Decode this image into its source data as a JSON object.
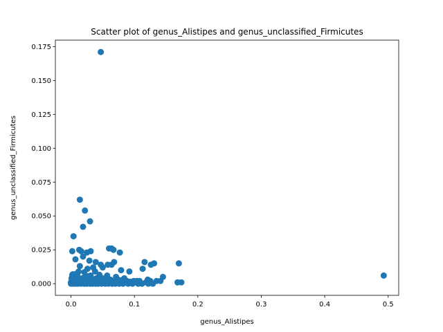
{
  "chart_data": {
    "type": "scatter",
    "title": "Scatter plot of genus_Alistipes and genus_unclassified_Firmicutes",
    "xlabel": "genus_Alistipes",
    "ylabel": "genus_unclassified_Firmicutes",
    "xlim": [
      -0.0246,
      0.5166
    ],
    "ylim": [
      -0.0086,
      0.1798
    ],
    "xticks": [
      0.0,
      0.1,
      0.2,
      0.3,
      0.4,
      0.5
    ],
    "xtick_labels": [
      "0.0",
      "0.1",
      "0.2",
      "0.3",
      "0.4",
      "0.5"
    ],
    "yticks": [
      0.0,
      0.025,
      0.05,
      0.075,
      0.1,
      0.125,
      0.15,
      0.175
    ],
    "ytick_labels": [
      "0.000",
      "0.025",
      "0.050",
      "0.075",
      "0.100",
      "0.125",
      "0.150",
      "0.175"
    ],
    "grid": false,
    "color": "#1f77b4",
    "points": [
      [
        0.047,
        0.171
      ],
      [
        0.014,
        0.062
      ],
      [
        0.022,
        0.054
      ],
      [
        0.03,
        0.046
      ],
      [
        0.019,
        0.042
      ],
      [
        0.004,
        0.035
      ],
      [
        0.06,
        0.026
      ],
      [
        0.064,
        0.026
      ],
      [
        0.067,
        0.025
      ],
      [
        0.013,
        0.025
      ],
      [
        0.016,
        0.024
      ],
      [
        0.002,
        0.024
      ],
      [
        0.031,
        0.024
      ],
      [
        0.025,
        0.023
      ],
      [
        0.077,
        0.023
      ],
      [
        0.019,
        0.02
      ],
      [
        0.007,
        0.018
      ],
      [
        0.029,
        0.017
      ],
      [
        0.039,
        0.016
      ],
      [
        0.068,
        0.016
      ],
      [
        0.116,
        0.016
      ],
      [
        0.131,
        0.015
      ],
      [
        0.17,
        0.015
      ],
      [
        0.047,
        0.014
      ],
      [
        0.058,
        0.014
      ],
      [
        0.064,
        0.014
      ],
      [
        0.126,
        0.014
      ],
      [
        0.014,
        0.013
      ],
      [
        0.035,
        0.012
      ],
      [
        0.05,
        0.012
      ],
      [
        0.026,
        0.011
      ],
      [
        0.113,
        0.011
      ],
      [
        0.079,
        0.01
      ],
      [
        0.092,
        0.009
      ],
      [
        0.012,
        0.009
      ],
      [
        0.038,
        0.009
      ],
      [
        0.003,
        0.007
      ],
      [
        0.01,
        0.007
      ],
      [
        0.005,
        0.006
      ],
      [
        0.057,
        0.006
      ],
      [
        0.031,
        0.006
      ],
      [
        0.022,
        0.005
      ],
      [
        0.046,
        0.005
      ],
      [
        0.071,
        0.005
      ],
      [
        0.145,
        0.005
      ],
      [
        0.493,
        0.006
      ],
      [
        0.001,
        0.004
      ],
      [
        0.008,
        0.004
      ],
      [
        0.017,
        0.004
      ],
      [
        0.028,
        0.004
      ],
      [
        0.04,
        0.004
      ],
      [
        0.053,
        0.004
      ],
      [
        0.084,
        0.004
      ],
      [
        0.121,
        0.003
      ],
      [
        0.002,
        0.003
      ],
      [
        0.011,
        0.003
      ],
      [
        0.02,
        0.003
      ],
      [
        0.033,
        0.003
      ],
      [
        0.044,
        0.003
      ],
      [
        0.062,
        0.003
      ],
      [
        0.074,
        0.003
      ],
      [
        0.099,
        0.002
      ],
      [
        0.104,
        0.002
      ],
      [
        0.135,
        0.002
      ],
      [
        0.141,
        0.002
      ],
      [
        0.001,
        0.002
      ],
      [
        0.006,
        0.002
      ],
      [
        0.015,
        0.002
      ],
      [
        0.024,
        0.002
      ],
      [
        0.036,
        0.002
      ],
      [
        0.049,
        0.002
      ],
      [
        0.066,
        0.002
      ],
      [
        0.088,
        0.002
      ],
      [
        0.108,
        0.002
      ],
      [
        0.125,
        0.002
      ],
      [
        0.0,
        0.001
      ],
      [
        0.004,
        0.001
      ],
      [
        0.009,
        0.001
      ],
      [
        0.013,
        0.001
      ],
      [
        0.018,
        0.001
      ],
      [
        0.023,
        0.001
      ],
      [
        0.027,
        0.001
      ],
      [
        0.032,
        0.001
      ],
      [
        0.037,
        0.001
      ],
      [
        0.042,
        0.001
      ],
      [
        0.051,
        0.001
      ],
      [
        0.056,
        0.001
      ],
      [
        0.061,
        0.001
      ],
      [
        0.069,
        0.001
      ],
      [
        0.073,
        0.001
      ],
      [
        0.08,
        0.001
      ],
      [
        0.086,
        0.001
      ],
      [
        0.095,
        0.001
      ],
      [
        0.102,
        0.001
      ],
      [
        0.118,
        0.001
      ],
      [
        0.168,
        0.001
      ],
      [
        0.174,
        0.001
      ],
      [
        0.0,
        0.0
      ],
      [
        0.003,
        0.0
      ],
      [
        0.007,
        0.0
      ],
      [
        0.011,
        0.0
      ],
      [
        0.016,
        0.0
      ],
      [
        0.021,
        0.0
      ],
      [
        0.025,
        0.0
      ],
      [
        0.03,
        0.0
      ],
      [
        0.034,
        0.0
      ],
      [
        0.039,
        0.0
      ],
      [
        0.043,
        0.0
      ],
      [
        0.048,
        0.0
      ],
      [
        0.054,
        0.0
      ],
      [
        0.059,
        0.0
      ],
      [
        0.065,
        0.0
      ],
      [
        0.07,
        0.0
      ],
      [
        0.076,
        0.0
      ],
      [
        0.082,
        0.0
      ],
      [
        0.09,
        0.0
      ],
      [
        0.097,
        0.0
      ],
      [
        0.106,
        0.0
      ],
      [
        0.112,
        0.0
      ],
      [
        0.122,
        0.0
      ],
      [
        0.129,
        0.0
      ],
      [
        0.005,
        0.001
      ],
      [
        0.012,
        0.002
      ],
      [
        0.019,
        0.0005
      ],
      [
        0.029,
        0.0015
      ],
      [
        0.041,
        0.0025
      ],
      [
        0.052,
        0.0035
      ],
      [
        0.063,
        0.0015
      ],
      [
        0.078,
        0.0025
      ],
      [
        0.093,
        0.0015
      ],
      [
        0.002,
        0.0065
      ],
      [
        0.009,
        0.0075
      ],
      [
        0.021,
        0.0085
      ],
      [
        0.027,
        0.0055
      ],
      [
        0.045,
        0.0065
      ]
    ]
  }
}
